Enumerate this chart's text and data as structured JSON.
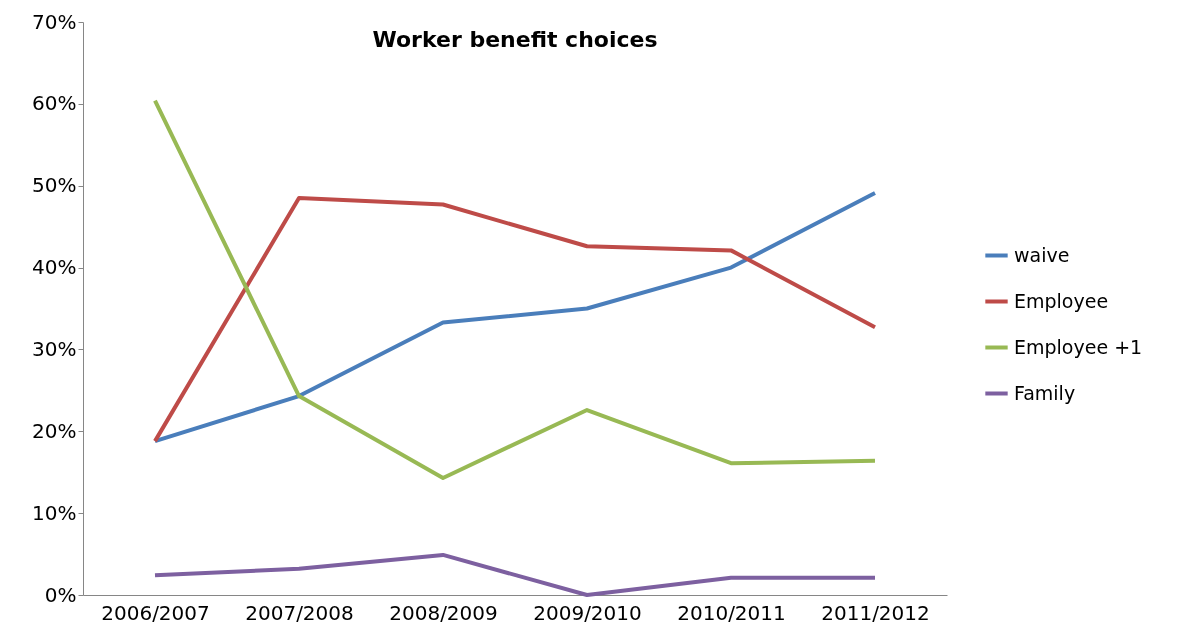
{
  "chart_data": {
    "type": "line",
    "title": "Worker benefit choices",
    "categories": [
      "2006/2007",
      "2007/2008",
      "2008/2009",
      "2009/2010",
      "2010/2011",
      "2011/2012"
    ],
    "series": [
      {
        "name": "waive",
        "color": "#4a7ebb",
        "values": [
          18.8,
          24.3,
          33.3,
          35.0,
          40.0,
          49.1
        ]
      },
      {
        "name": "Employee",
        "color": "#be4b48",
        "values": [
          18.8,
          48.5,
          47.7,
          42.6,
          42.1,
          32.7
        ]
      },
      {
        "name": "Employee +1",
        "color": "#98b954",
        "values": [
          60.4,
          24.3,
          14.3,
          22.6,
          16.1,
          16.4
        ]
      },
      {
        "name": "Family",
        "color": "#7d60a0",
        "values": [
          2.4,
          3.2,
          4.9,
          0.0,
          2.1,
          2.1
        ]
      }
    ],
    "ylim": [
      0,
      70
    ],
    "yticks": [
      {
        "value": 0,
        "label": "0%"
      },
      {
        "value": 10,
        "label": "10%"
      },
      {
        "value": 20,
        "label": "20%"
      },
      {
        "value": 30,
        "label": "30%"
      },
      {
        "value": 40,
        "label": "40%"
      },
      {
        "value": 50,
        "label": "50%"
      },
      {
        "value": 60,
        "label": "60%"
      },
      {
        "value": 70,
        "label": "70%"
      }
    ],
    "grid": false,
    "legend": "right",
    "marker": "none",
    "line_style": "solid"
  }
}
